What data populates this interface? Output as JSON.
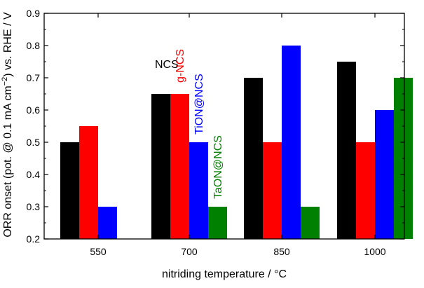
{
  "colors": {
    "NCS": "#000000",
    "g-NCS": "#ff0000",
    "TiON@NCS": "#0000ff",
    "TaON@NCS": "#008000"
  },
  "chart_data": {
    "type": "bar",
    "xlabel": "nitriding temperature / °C",
    "ylabel_parts": [
      "ORR onset (pot. @ 0.1 mA cm",
      "−2",
      ") vs. RHE / V"
    ],
    "categories": [
      "550",
      "700",
      "850",
      "1000"
    ],
    "ylim": [
      0.2,
      0.9
    ],
    "yticks": [
      "0.2",
      "0.3",
      "0.4",
      "0.5",
      "0.6",
      "0.7",
      "0.8",
      "0.9"
    ],
    "grid": false,
    "series": [
      {
        "name": "NCS",
        "values": [
          0.5,
          0.65,
          0.7,
          0.75
        ]
      },
      {
        "name": "g-NCS",
        "values": [
          0.55,
          0.65,
          0.5,
          0.5
        ]
      },
      {
        "name": "TiON@NCS",
        "values": [
          0.3,
          0.5,
          0.8,
          0.6
        ]
      },
      {
        "name": "TaON@NCS",
        "values": [
          null,
          0.3,
          0.3,
          0.7
        ]
      }
    ],
    "annotations": [
      "NCS",
      "g-NCS",
      "TiON@NCS",
      "TaON@NCS"
    ]
  }
}
